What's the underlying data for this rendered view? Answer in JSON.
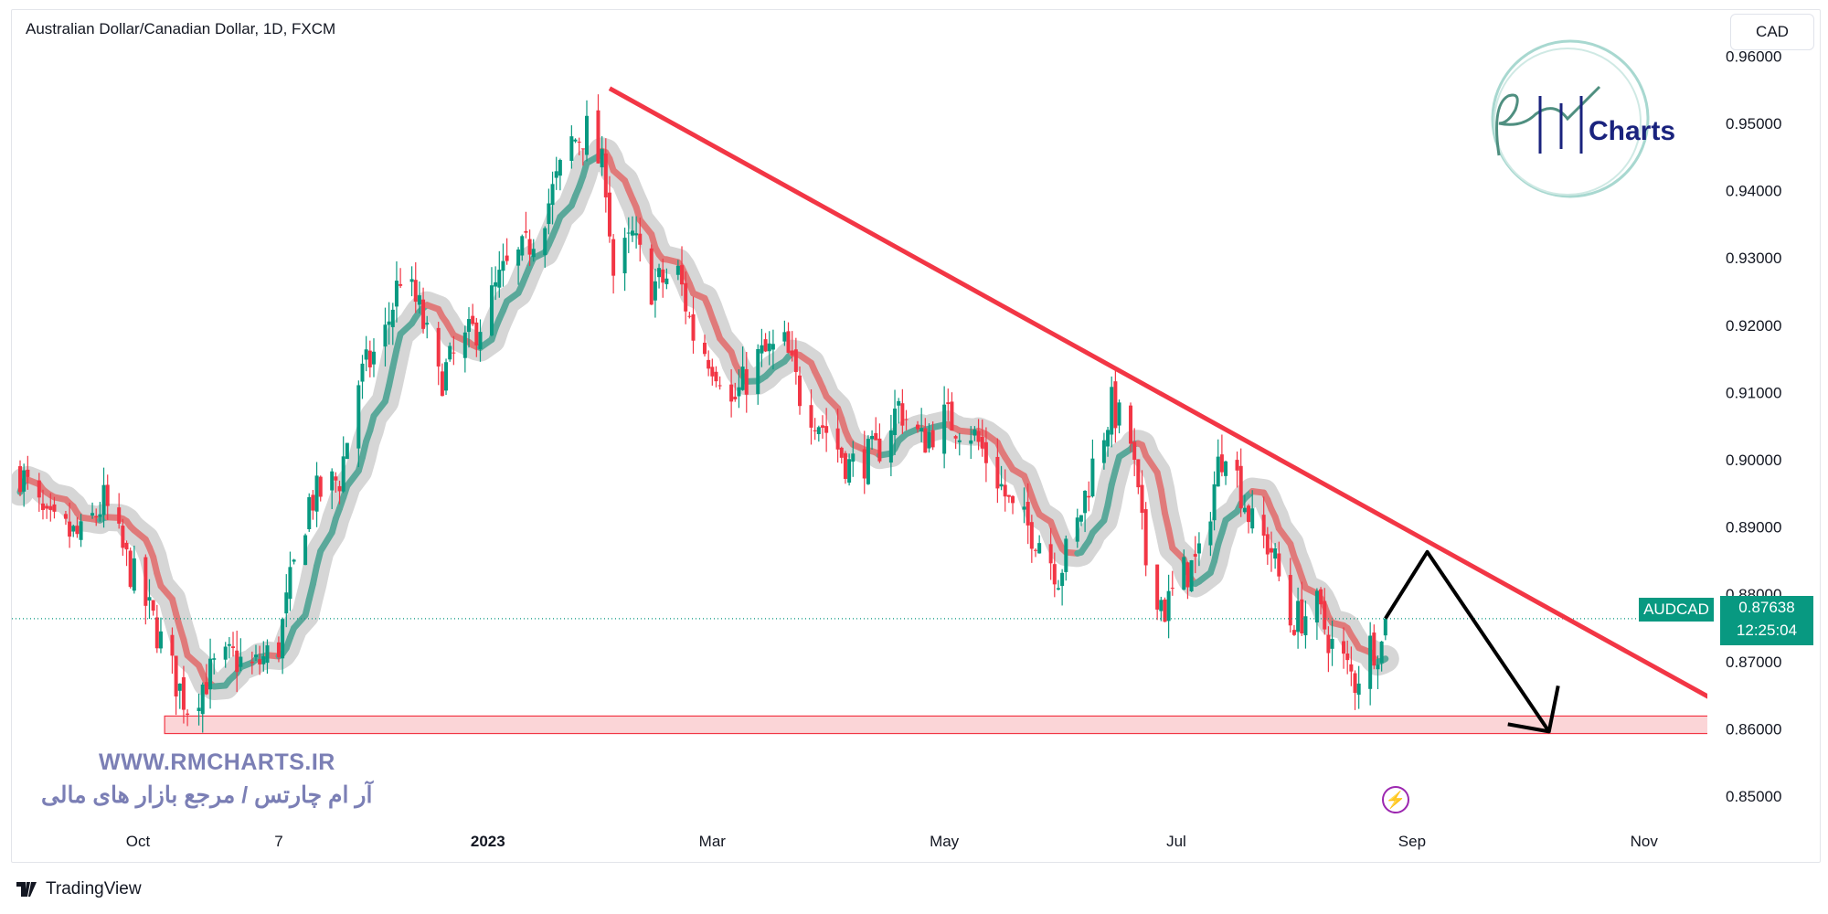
{
  "header": {
    "title": "Australian Dollar/Canadian Dollar, 1D, FXCM",
    "currency_button": "CAD"
  },
  "price_label": {
    "symbol": "AUDCAD",
    "price": "0.87638",
    "countdown": "12:25:04",
    "color": "#089981"
  },
  "watermark": {
    "url": "WWW.RMCHARTS.IR",
    "tagline": "آر ام چارتس / مرجع بازار های مالی",
    "logo_text": "RM Charts"
  },
  "footer": {
    "brand": "TradingView"
  },
  "icons": {
    "alert": "lightning-bolt-icon",
    "brand": "tradingview-logo-icon"
  },
  "chart_data": {
    "type": "candlestick",
    "symbol": "AUDCAD",
    "interval": "1D",
    "ylim": [
      0.845,
      0.962
    ],
    "y_ticks": [
      "0.96000",
      "0.95000",
      "0.94000",
      "0.93000",
      "0.92000",
      "0.91000",
      "0.90000",
      "0.89000",
      "0.88000",
      "0.87000",
      "0.86000",
      "0.85000"
    ],
    "x_ticks": [
      {
        "label": "Oct",
        "date": "2022-10-01",
        "bold": false
      },
      {
        "label": "7",
        "date": "2022-11-07",
        "bold": false
      },
      {
        "label": "2023",
        "date": "2023-01-01",
        "bold": true
      },
      {
        "label": "Mar",
        "date": "2023-03-01",
        "bold": false
      },
      {
        "label": "May",
        "date": "2023-05-01",
        "bold": false
      },
      {
        "label": "Jul",
        "date": "2023-07-01",
        "bold": false
      },
      {
        "label": "Sep",
        "date": "2023-09-01",
        "bold": false
      },
      {
        "label": "Nov",
        "date": "2023-11-01",
        "bold": false
      }
    ],
    "approx_closes": [
      [
        "2022-08-31",
        0.8982
      ],
      [
        "2022-09-07",
        0.8902
      ],
      [
        "2022-09-16",
        0.8884
      ],
      [
        "2022-09-22",
        0.8938
      ],
      [
        "2022-09-28",
        0.8849
      ],
      [
        "2022-10-05",
        0.876
      ],
      [
        "2022-10-11",
        0.8671
      ],
      [
        "2022-10-14",
        0.8635
      ],
      [
        "2022-10-21",
        0.8689
      ],
      [
        "2022-10-26",
        0.8706
      ],
      [
        "2022-10-31",
        0.8689
      ],
      [
        "2022-11-07",
        0.8724
      ],
      [
        "2022-11-10",
        0.8813
      ],
      [
        "2022-11-15",
        0.8938
      ],
      [
        "2022-11-23",
        0.8973
      ],
      [
        "2022-11-28",
        0.9116
      ],
      [
        "2022-12-05",
        0.9187
      ],
      [
        "2022-12-09",
        0.9276
      ],
      [
        "2022-12-14",
        0.9222
      ],
      [
        "2022-12-19",
        0.9116
      ],
      [
        "2022-12-23",
        0.9151
      ],
      [
        "2022-12-30",
        0.9205
      ],
      [
        "2023-01-05",
        0.9276
      ],
      [
        "2023-01-11",
        0.9311
      ],
      [
        "2023-01-17",
        0.9383
      ],
      [
        "2023-01-23",
        0.9472
      ],
      [
        "2023-01-27",
        0.9489
      ],
      [
        "2023-02-01",
        0.9418
      ],
      [
        "2023-02-03",
        0.9276
      ],
      [
        "2023-02-08",
        0.9329
      ],
      [
        "2023-02-13",
        0.9258
      ],
      [
        "2023-02-20",
        0.9276
      ],
      [
        "2023-02-24",
        0.9187
      ],
      [
        "2023-03-03",
        0.9133
      ],
      [
        "2023-03-06",
        0.908
      ],
      [
        "2023-03-13",
        0.9151
      ],
      [
        "2023-03-20",
        0.9169
      ],
      [
        "2023-03-24",
        0.9098
      ],
      [
        "2023-03-31",
        0.9044
      ],
      [
        "2023-04-06",
        0.8991
      ],
      [
        "2023-04-13",
        0.9009
      ],
      [
        "2023-04-19",
        0.908
      ],
      [
        "2023-04-25",
        0.9027
      ],
      [
        "2023-05-01",
        0.9062
      ],
      [
        "2023-05-08",
        0.9044
      ],
      [
        "2023-05-15",
        0.8973
      ],
      [
        "2023-05-19",
        0.892
      ],
      [
        "2023-05-26",
        0.8884
      ],
      [
        "2023-05-31",
        0.8831
      ],
      [
        "2023-06-05",
        0.8902
      ],
      [
        "2023-06-09",
        0.8991
      ],
      [
        "2023-06-14",
        0.908
      ],
      [
        "2023-06-19",
        0.9027
      ],
      [
        "2023-06-23",
        0.8849
      ],
      [
        "2023-06-28",
        0.8778
      ],
      [
        "2023-07-03",
        0.8831
      ],
      [
        "2023-07-07",
        0.8849
      ],
      [
        "2023-07-12",
        0.8991
      ],
      [
        "2023-07-14",
        0.9027
      ],
      [
        "2023-07-19",
        0.8938
      ],
      [
        "2023-07-21",
        0.8902
      ],
      [
        "2023-07-26",
        0.8867
      ],
      [
        "2023-07-31",
        0.876
      ],
      [
        "2023-08-07",
        0.8778
      ],
      [
        "2023-08-11",
        0.8724
      ],
      [
        "2023-08-17",
        0.8671
      ],
      [
        "2023-08-21",
        0.8724
      ],
      [
        "2023-08-24",
        0.8724
      ],
      [
        "2023-08-25",
        0.87638
      ]
    ],
    "current_price": 0.87638,
    "colors": {
      "up": "#089981",
      "down": "#f23645",
      "ma_up": "#5aa89a",
      "ma_down": "#e07a7a",
      "band": "#cfcfcf",
      "trendline": "#f23645",
      "zone_fill": "#fbd5d7",
      "zone_border": "#f23645"
    },
    "annotations": {
      "trendline": [
        [
          "2023-02-02",
          0.9552
        ],
        [
          "2023-11-20",
          0.8641
        ]
      ],
      "support_zone": {
        "from": "2022-10-08",
        "to": "2023-11-20",
        "low": 0.8593,
        "high": 0.8619
      },
      "projection_arrow": [
        [
          "2023-08-25",
          0.8764
        ],
        [
          "2023-09-05",
          0.8863
        ],
        [
          "2023-10-07",
          0.8596
        ]
      ]
    }
  }
}
